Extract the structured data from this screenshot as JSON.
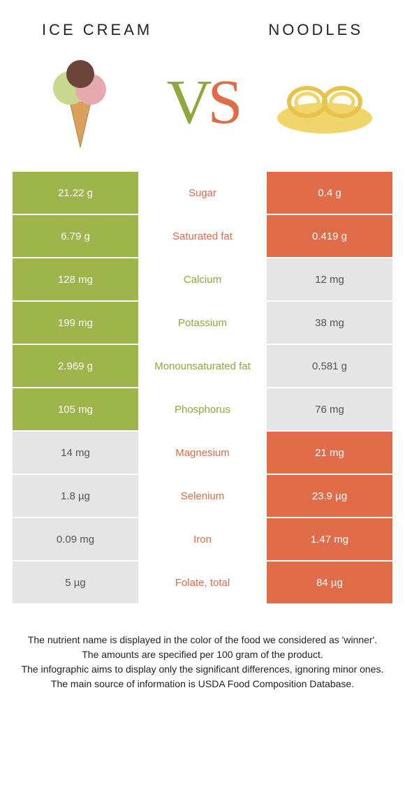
{
  "colors": {
    "green": "#9db54a",
    "orange": "#e06c4a",
    "grey": "#e5e5e5",
    "text_green": "#8ea83b",
    "text_orange": "#e06c4a",
    "text_grey": "#666666"
  },
  "header": {
    "left": "Ice Cream",
    "right": "Noodles"
  },
  "vs": {
    "v": "V",
    "s": "S"
  },
  "rows": [
    {
      "label": "Sugar",
      "left": "21.22 g",
      "right": "0.4 g",
      "left_bg": "green",
      "right_bg": "orange",
      "label_color": "text_orange"
    },
    {
      "label": "Saturated fat",
      "left": "6.79 g",
      "right": "0.419 g",
      "left_bg": "green",
      "right_bg": "orange",
      "label_color": "text_orange"
    },
    {
      "label": "Calcium",
      "left": "128 mg",
      "right": "12 mg",
      "left_bg": "green",
      "right_bg": "grey",
      "label_color": "text_green"
    },
    {
      "label": "Potassium",
      "left": "199 mg",
      "right": "38 mg",
      "left_bg": "green",
      "right_bg": "grey",
      "label_color": "text_green"
    },
    {
      "label": "Monounsaturated fat",
      "left": "2.969 g",
      "right": "0.581 g",
      "left_bg": "green",
      "right_bg": "grey",
      "label_color": "text_green"
    },
    {
      "label": "Phosphorus",
      "left": "105 mg",
      "right": "76 mg",
      "left_bg": "green",
      "right_bg": "grey",
      "label_color": "text_green"
    },
    {
      "label": "Magnesium",
      "left": "14 mg",
      "right": "21 mg",
      "left_bg": "grey",
      "right_bg": "orange",
      "label_color": "text_orange"
    },
    {
      "label": "Selenium",
      "left": "1.8 µg",
      "right": "23.9 µg",
      "left_bg": "grey",
      "right_bg": "orange",
      "label_color": "text_orange"
    },
    {
      "label": "Iron",
      "left": "0.09 mg",
      "right": "1.47 mg",
      "left_bg": "grey",
      "right_bg": "orange",
      "label_color": "text_orange"
    },
    {
      "label": "Folate, total",
      "left": "5 µg",
      "right": "84 µg",
      "left_bg": "grey",
      "right_bg": "orange",
      "label_color": "text_orange"
    }
  ],
  "footer": {
    "l1": "The nutrient name is displayed in the color of the food we considered as 'winner'.",
    "l2": "The amounts are specified per 100 gram of the product.",
    "l3": "The infographic aims to display only the significant differences, ignoring minor ones.",
    "l4": "The main source of information is USDA Food Composition Database."
  }
}
